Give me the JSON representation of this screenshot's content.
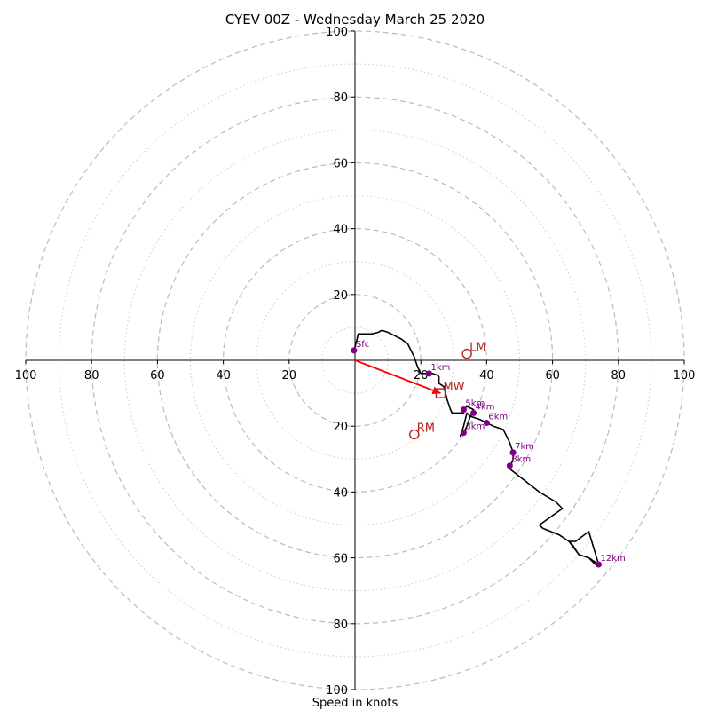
{
  "chart_data": {
    "type": "scatter",
    "title": "CYEV 00Z - Wednesday March 25 2020",
    "xlabel": "Speed in knots",
    "ylabel": "",
    "xlim": [
      -100,
      100
    ],
    "ylim": [
      -100,
      100
    ],
    "rings": [
      10,
      20,
      30,
      40,
      50,
      60,
      70,
      80,
      90,
      100
    ],
    "tick_labels": [
      "20",
      "40",
      "60",
      "80",
      "100"
    ],
    "colors": {
      "hodograph": "#000000",
      "height_marker": "#800080",
      "motion": "#b22222",
      "mean_wind_arrow": "#ff0000",
      "ring_major": "#bbbbbb",
      "ring_minor": "#cccccc"
    },
    "series": [
      {
        "style": "line",
        "points": [
          [
            -0.3,
            3
          ],
          [
            0.5,
            6
          ],
          [
            1,
            8
          ],
          [
            3,
            8
          ],
          [
            5,
            8
          ],
          [
            7,
            8.5
          ],
          [
            8,
            9
          ],
          [
            8.5,
            9
          ],
          [
            10,
            8.5
          ],
          [
            12,
            7.5
          ],
          [
            14,
            6.5
          ],
          [
            16,
            5
          ],
          [
            17,
            3
          ],
          [
            18,
            1
          ],
          [
            19,
            -2
          ],
          [
            20,
            -4
          ],
          [
            21,
            -4
          ],
          [
            22.5,
            -4
          ],
          [
            23.5,
            -4
          ],
          [
            25,
            -4.5
          ],
          [
            25.5,
            -5
          ],
          [
            25.5,
            -7
          ],
          [
            27,
            -8
          ],
          [
            28,
            -12
          ],
          [
            29,
            -15
          ],
          [
            29.5,
            -16
          ],
          [
            33,
            -16
          ],
          [
            33,
            -15
          ],
          [
            34,
            -14
          ],
          [
            36,
            -15
          ],
          [
            36,
            -16
          ],
          [
            35,
            -17
          ],
          [
            34,
            -16
          ],
          [
            33,
            -20
          ],
          [
            32,
            -23
          ],
          [
            33,
            -22
          ],
          [
            34,
            -20
          ],
          [
            35,
            -17
          ],
          [
            38,
            -18
          ],
          [
            40,
            -19
          ],
          [
            42,
            -20
          ],
          [
            45,
            -21
          ],
          [
            47,
            -25
          ],
          [
            48,
            -28
          ],
          [
            48,
            -30
          ],
          [
            47,
            -33
          ],
          [
            56,
            -40
          ],
          [
            61,
            -43
          ],
          [
            63,
            -45
          ],
          [
            56,
            -50
          ],
          [
            57,
            -51
          ],
          [
            62,
            -53
          ],
          [
            65,
            -55
          ],
          [
            66,
            -56
          ],
          [
            68,
            -59
          ],
          [
            71,
            -60
          ],
          [
            73,
            -62
          ],
          [
            74,
            -62
          ],
          [
            71,
            -52
          ],
          [
            67,
            -55
          ],
          [
            65,
            -55
          ],
          [
            68,
            -59
          ],
          [
            71,
            -60
          ],
          [
            74,
            -62
          ]
        ]
      },
      {
        "style": "points",
        "points": [
          {
            "x": -0.3,
            "y": 3,
            "label": "Sfc"
          },
          {
            "x": 22.5,
            "y": -4,
            "label": "1km"
          },
          {
            "x": 33,
            "y": -15,
            "label": "5km"
          },
          {
            "x": 36,
            "y": -16,
            "label": "4km"
          },
          {
            "x": 33,
            "y": -22,
            "label": "3km"
          },
          {
            "x": 40,
            "y": -19,
            "label": "6km"
          },
          {
            "x": 48,
            "y": -28,
            "label": "7km"
          },
          {
            "x": 47,
            "y": -32,
            "label": "8km"
          },
          {
            "x": 74,
            "y": -62,
            "label": "12km"
          }
        ]
      }
    ],
    "storm_motion": [
      {
        "label": "LM",
        "x": 34,
        "y": 2,
        "marker": "circle"
      },
      {
        "label": "MW",
        "x": 26,
        "y": -10,
        "marker": "square"
      },
      {
        "label": "RM",
        "x": 18,
        "y": -22.5,
        "marker": "circle"
      }
    ],
    "mean_wind_arrow": {
      "from": [
        0,
        0
      ],
      "to": [
        26,
        -10
      ]
    }
  }
}
